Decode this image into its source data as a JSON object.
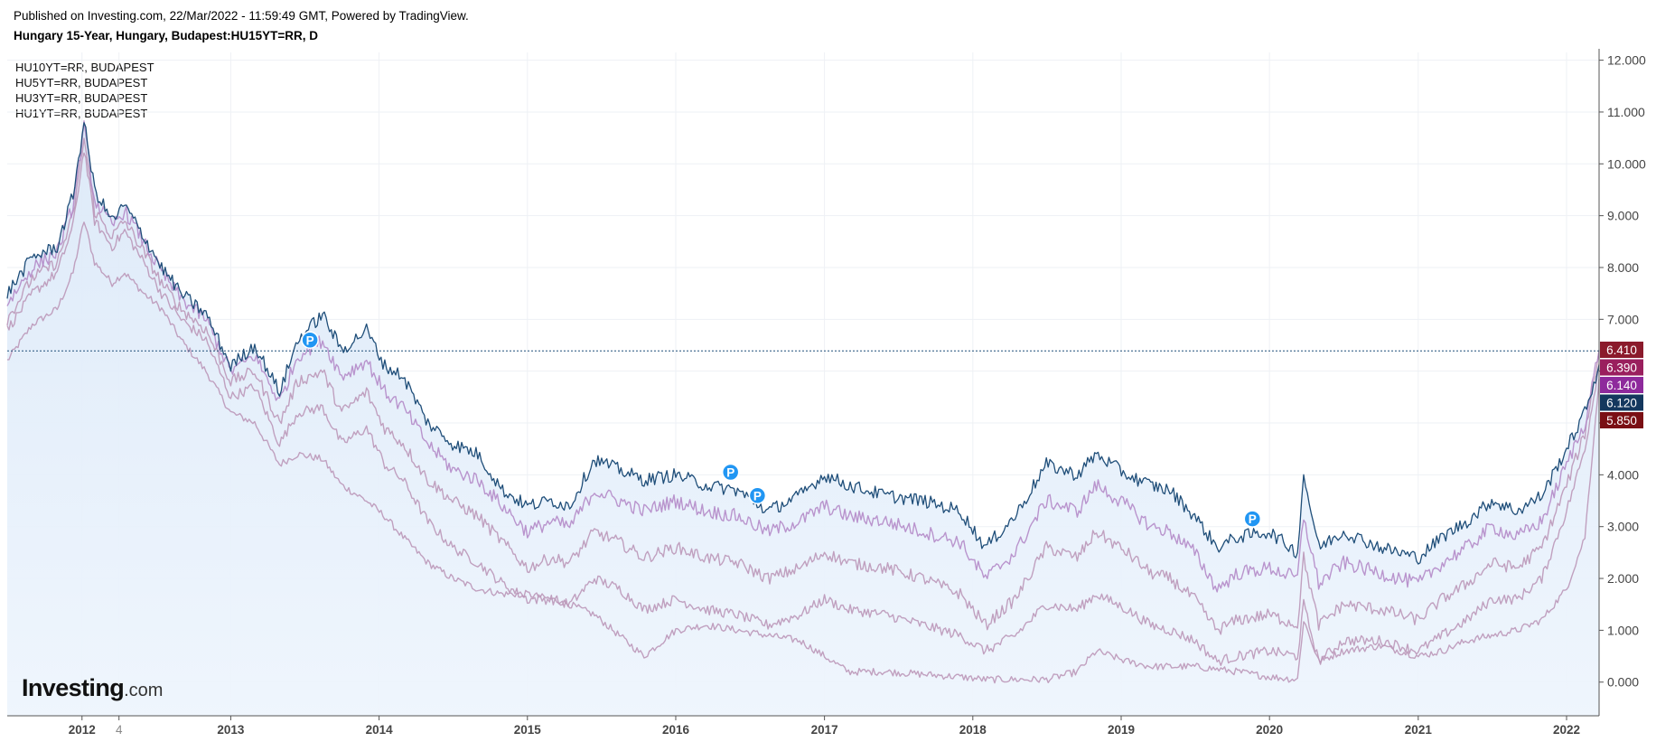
{
  "header": {
    "published": "Published on Investing.com, 22/Mar/2022 - 11:59:49 GMT, Powered by TradingView.",
    "symbol": "Hungary 15-Year, Hungary, Budapest:HU15YT=RR, D"
  },
  "logo": {
    "main": "Investing",
    "suffix": ".com"
  },
  "colors": {
    "main_line": "#1f4e79",
    "compare_line_a": "#b48ac8",
    "compare_line_b": "#bb97b8",
    "area_fill": "#dce9f8",
    "price_line": "#1f4e79",
    "badge_blue": "#2196f3"
  },
  "chart_data": {
    "type": "line",
    "title": "Hungary 15-Year, Hungary, Budapest:HU15YT=RR, D",
    "x_tick_labels": [
      "2012",
      "4",
      "2013",
      "2014",
      "2015",
      "2016",
      "2017",
      "2018",
      "2019",
      "2020",
      "2021",
      "2022"
    ],
    "y_tick_labels": [
      "12.000",
      "11.000",
      "10.000",
      "9.000",
      "8.000",
      "7.000",
      "6.000",
      "5.000",
      "4.000",
      "3.000",
      "2.000",
      "1.000",
      "0.000"
    ],
    "ylim": [
      -0.65,
      12.15
    ],
    "xlim": [
      "2011-07-01",
      "2022-03-22"
    ],
    "grid": true,
    "legend_position": "top-left",
    "legend": [
      "HU10YT=RR, BUDAPEST",
      "HU5YT=RR, BUDAPEST",
      "HU3YT=RR, BUDAPEST",
      "HU1YT=RR, BUDAPEST"
    ],
    "price_line": 6.39,
    "last_value_badges": [
      {
        "value": "6.410",
        "color": "#8b1a2b"
      },
      {
        "value": "6.390",
        "color": "#9a1f5e"
      },
      {
        "value": "6.140",
        "color": "#8e2a9c"
      },
      {
        "value": "6.120",
        "color": "#14385e"
      },
      {
        "value": "5.850",
        "color": "#7a0f14"
      }
    ],
    "markers": [
      {
        "label": "P",
        "date": "2013-07-15",
        "value": 6.6
      },
      {
        "label": "P",
        "date": "2016-05-15",
        "value": 4.05
      },
      {
        "label": "P",
        "date": "2016-07-20",
        "value": 3.6
      },
      {
        "label": "P",
        "date": "2019-11-20",
        "value": 3.15
      }
    ],
    "series": [
      {
        "name": "Hungary 15-Year",
        "color": "#1f4e79",
        "x": [
          "2011-07-01",
          "2011-09-01",
          "2011-11-01",
          "2011-12-10",
          "2012-01-06",
          "2012-02-01",
          "2012-03-15",
          "2012-04-15",
          "2012-06-01",
          "2012-07-15",
          "2012-09-01",
          "2012-11-01",
          "2013-01-01",
          "2013-03-01",
          "2013-05-01",
          "2013-06-15",
          "2013-08-15",
          "2013-10-01",
          "2013-12-01",
          "2014-01-15",
          "2014-03-01",
          "2014-05-01",
          "2014-07-01",
          "2014-09-01",
          "2014-11-01",
          "2015-01-01",
          "2015-03-01",
          "2015-04-15",
          "2015-06-15",
          "2015-08-15",
          "2015-10-15",
          "2016-01-01",
          "2016-03-15",
          "2016-06-01",
          "2016-08-15",
          "2016-11-01",
          "2017-01-01",
          "2017-03-01",
          "2017-06-01",
          "2017-09-01",
          "2017-12-01",
          "2018-02-01",
          "2018-04-15",
          "2018-07-01",
          "2018-09-15",
          "2018-11-01",
          "2019-01-15",
          "2019-03-15",
          "2019-05-01",
          "2019-07-01",
          "2019-08-25",
          "2019-10-15",
          "2020-01-01",
          "2020-03-10",
          "2020-03-25",
          "2020-05-01",
          "2020-07-01",
          "2020-10-01",
          "2021-01-01",
          "2021-03-01",
          "2021-05-01",
          "2021-07-01",
          "2021-09-01",
          "2021-11-01",
          "2022-01-01",
          "2022-02-15",
          "2022-03-22"
        ],
        "y": [
          7.5,
          8.2,
          8.4,
          9.4,
          10.8,
          9.5,
          8.9,
          9.2,
          8.6,
          8.0,
          7.5,
          7.1,
          6.1,
          6.5,
          5.6,
          6.6,
          7.1,
          6.4,
          6.8,
          6.1,
          5.9,
          5.0,
          4.6,
          4.4,
          3.7,
          3.4,
          3.5,
          3.4,
          4.3,
          4.1,
          3.9,
          4.0,
          3.8,
          3.7,
          3.3,
          3.6,
          4.0,
          3.8,
          3.6,
          3.5,
          3.3,
          2.6,
          3.2,
          4.2,
          4.0,
          4.4,
          4.0,
          3.8,
          3.7,
          3.2,
          2.6,
          2.8,
          2.9,
          2.5,
          4.0,
          2.6,
          2.9,
          2.6,
          2.4,
          2.8,
          3.1,
          3.5,
          3.3,
          3.6,
          4.5,
          5.2,
          6.12
        ]
      },
      {
        "name": "HU10YT=RR",
        "color": "#b48ac8",
        "x": [
          "2011-07-01",
          "2011-09-01",
          "2011-11-01",
          "2011-12-10",
          "2012-01-06",
          "2012-02-01",
          "2012-03-15",
          "2012-04-15",
          "2012-06-01",
          "2012-07-15",
          "2012-09-01",
          "2012-11-01",
          "2013-01-01",
          "2013-03-01",
          "2013-05-01",
          "2013-06-15",
          "2013-08-15",
          "2013-10-01",
          "2013-12-01",
          "2014-01-15",
          "2014-03-01",
          "2014-05-01",
          "2014-07-01",
          "2014-09-01",
          "2014-11-01",
          "2015-01-01",
          "2015-03-01",
          "2015-04-15",
          "2015-06-15",
          "2015-08-15",
          "2015-10-15",
          "2016-01-01",
          "2016-03-15",
          "2016-06-01",
          "2016-08-15",
          "2016-11-01",
          "2017-01-01",
          "2017-03-01",
          "2017-06-01",
          "2017-09-01",
          "2017-12-01",
          "2018-02-01",
          "2018-04-15",
          "2018-07-01",
          "2018-09-15",
          "2018-11-01",
          "2019-01-15",
          "2019-03-15",
          "2019-05-01",
          "2019-07-01",
          "2019-08-25",
          "2019-10-15",
          "2020-01-01",
          "2020-03-10",
          "2020-03-25",
          "2020-05-01",
          "2020-07-01",
          "2020-10-01",
          "2021-01-01",
          "2021-03-01",
          "2021-05-01",
          "2021-07-01",
          "2021-09-01",
          "2021-11-01",
          "2022-01-01",
          "2022-02-15",
          "2022-03-22"
        ],
        "y": [
          7.3,
          8.0,
          8.3,
          9.2,
          10.7,
          9.3,
          8.8,
          9.1,
          8.5,
          7.9,
          7.4,
          7.0,
          6.0,
          6.3,
          5.4,
          6.3,
          6.6,
          5.9,
          6.2,
          5.6,
          5.3,
          4.6,
          4.1,
          3.9,
          3.4,
          2.9,
          3.1,
          3.0,
          3.7,
          3.5,
          3.3,
          3.5,
          3.3,
          3.2,
          2.9,
          3.1,
          3.4,
          3.2,
          3.1,
          2.9,
          2.7,
          2.0,
          2.5,
          3.5,
          3.3,
          3.8,
          3.4,
          3.0,
          2.9,
          2.5,
          1.8,
          2.1,
          2.2,
          2.0,
          3.2,
          1.9,
          2.3,
          2.1,
          1.9,
          2.3,
          2.6,
          3.0,
          2.8,
          3.1,
          4.2,
          5.0,
          6.41
        ]
      },
      {
        "name": "HU5YT=RR",
        "color": "#bb97b8",
        "x": [
          "2011-07-01",
          "2011-09-01",
          "2011-11-01",
          "2011-12-10",
          "2012-01-06",
          "2012-02-01",
          "2012-03-15",
          "2012-04-15",
          "2012-06-01",
          "2012-07-15",
          "2012-09-01",
          "2012-11-01",
          "2013-01-01",
          "2013-03-01",
          "2013-05-01",
          "2013-06-15",
          "2013-08-15",
          "2013-10-01",
          "2013-12-01",
          "2014-01-15",
          "2014-03-01",
          "2014-05-01",
          "2014-07-01",
          "2014-09-01",
          "2014-11-01",
          "2015-01-01",
          "2015-03-01",
          "2015-04-15",
          "2015-06-15",
          "2015-08-15",
          "2015-10-15",
          "2016-01-01",
          "2016-03-15",
          "2016-06-01",
          "2016-08-15",
          "2016-11-01",
          "2017-01-01",
          "2017-03-01",
          "2017-06-01",
          "2017-09-01",
          "2017-12-01",
          "2018-02-01",
          "2018-04-15",
          "2018-07-01",
          "2018-09-15",
          "2018-11-01",
          "2019-01-15",
          "2019-03-15",
          "2019-05-01",
          "2019-07-01",
          "2019-08-25",
          "2019-10-15",
          "2020-01-01",
          "2020-03-10",
          "2020-03-25",
          "2020-05-01",
          "2020-07-01",
          "2020-10-01",
          "2021-01-01",
          "2021-03-01",
          "2021-05-01",
          "2021-07-01",
          "2021-09-01",
          "2021-11-01",
          "2022-01-01",
          "2022-02-15",
          "2022-03-22"
        ],
        "y": [
          7.0,
          7.8,
          8.1,
          9.0,
          10.5,
          9.1,
          8.6,
          8.9,
          8.3,
          7.7,
          7.2,
          6.8,
          5.8,
          6.0,
          5.0,
          5.8,
          6.0,
          5.2,
          5.6,
          4.9,
          4.6,
          3.9,
          3.5,
          3.2,
          2.7,
          2.2,
          2.4,
          2.3,
          2.9,
          2.7,
          2.4,
          2.6,
          2.4,
          2.3,
          2.0,
          2.2,
          2.5,
          2.3,
          2.2,
          2.0,
          1.7,
          1.1,
          1.6,
          2.6,
          2.4,
          2.9,
          2.5,
          2.1,
          2.0,
          1.6,
          1.0,
          1.2,
          1.3,
          1.1,
          2.4,
          1.1,
          1.5,
          1.4,
          1.2,
          1.6,
          1.9,
          2.3,
          2.2,
          2.6,
          3.8,
          4.8,
          6.39
        ]
      },
      {
        "name": "HU3YT=RR",
        "color": "#bb97b8",
        "x": [
          "2011-07-01",
          "2011-09-01",
          "2011-11-01",
          "2011-12-10",
          "2012-01-06",
          "2012-02-01",
          "2012-03-15",
          "2012-04-15",
          "2012-06-01",
          "2012-07-15",
          "2012-09-01",
          "2012-11-01",
          "2013-01-01",
          "2013-03-01",
          "2013-05-01",
          "2013-06-15",
          "2013-08-15",
          "2013-10-01",
          "2013-12-01",
          "2014-01-15",
          "2014-03-01",
          "2014-05-01",
          "2014-07-01",
          "2014-09-01",
          "2014-11-01",
          "2015-01-01",
          "2015-03-01",
          "2015-04-15",
          "2015-06-15",
          "2015-08-15",
          "2015-10-15",
          "2016-01-01",
          "2016-03-15",
          "2016-06-01",
          "2016-08-15",
          "2016-11-01",
          "2017-01-01",
          "2017-03-01",
          "2017-06-01",
          "2017-09-01",
          "2017-12-01",
          "2018-02-01",
          "2018-04-15",
          "2018-07-01",
          "2018-09-15",
          "2018-11-01",
          "2019-01-15",
          "2019-03-15",
          "2019-05-01",
          "2019-07-01",
          "2019-08-25",
          "2019-10-15",
          "2020-01-01",
          "2020-03-10",
          "2020-03-25",
          "2020-05-01",
          "2020-07-01",
          "2020-10-01",
          "2021-01-01",
          "2021-03-01",
          "2021-05-01",
          "2021-07-01",
          "2021-09-01",
          "2021-11-01",
          "2022-01-01",
          "2022-02-15",
          "2022-03-22"
        ],
        "y": [
          6.8,
          7.5,
          7.9,
          8.8,
          10.3,
          8.9,
          8.4,
          8.7,
          8.1,
          7.5,
          7.0,
          6.6,
          5.5,
          5.7,
          4.6,
          5.2,
          5.3,
          4.6,
          4.9,
          4.2,
          3.9,
          3.1,
          2.6,
          2.3,
          1.9,
          1.6,
          1.6,
          1.5,
          2.0,
          1.8,
          1.4,
          1.6,
          1.4,
          1.3,
          1.1,
          1.3,
          1.6,
          1.4,
          1.3,
          1.1,
          0.9,
          0.6,
          0.9,
          1.5,
          1.4,
          1.7,
          1.4,
          1.1,
          1.0,
          0.8,
          0.4,
          0.5,
          0.6,
          0.5,
          1.5,
          0.4,
          0.8,
          0.8,
          0.6,
          0.9,
          1.2,
          1.6,
          1.6,
          2.0,
          3.3,
          4.5,
          6.14
        ]
      },
      {
        "name": "HU1YT=RR",
        "color": "#bb97b8",
        "x": [
          "2011-07-01",
          "2011-09-01",
          "2011-11-01",
          "2011-12-10",
          "2012-01-06",
          "2012-02-01",
          "2012-03-15",
          "2012-04-15",
          "2012-06-01",
          "2012-07-15",
          "2012-09-01",
          "2012-11-01",
          "2013-01-01",
          "2013-03-01",
          "2013-05-01",
          "2013-06-15",
          "2013-08-15",
          "2013-10-01",
          "2013-12-01",
          "2014-01-15",
          "2014-03-01",
          "2014-05-01",
          "2014-07-01",
          "2014-09-01",
          "2014-11-01",
          "2015-01-01",
          "2015-03-01",
          "2015-04-15",
          "2015-06-15",
          "2015-08-15",
          "2015-10-15",
          "2016-01-01",
          "2016-03-15",
          "2016-06-01",
          "2016-08-15",
          "2016-11-01",
          "2017-01-01",
          "2017-03-01",
          "2017-06-01",
          "2017-09-01",
          "2017-12-01",
          "2018-02-01",
          "2018-04-15",
          "2018-07-01",
          "2018-09-15",
          "2018-11-01",
          "2019-01-15",
          "2019-03-15",
          "2019-05-01",
          "2019-07-01",
          "2019-08-25",
          "2019-10-15",
          "2020-01-01",
          "2020-03-10",
          "2020-03-25",
          "2020-05-01",
          "2020-07-01",
          "2020-10-01",
          "2021-01-01",
          "2021-03-01",
          "2021-05-01",
          "2021-07-01",
          "2021-09-01",
          "2021-11-01",
          "2022-01-01",
          "2022-02-15",
          "2022-03-22"
        ],
        "y": [
          6.2,
          6.9,
          7.2,
          7.9,
          8.9,
          8.1,
          7.7,
          7.9,
          7.5,
          7.2,
          6.6,
          6.0,
          5.2,
          5.0,
          4.2,
          4.4,
          4.3,
          3.8,
          3.5,
          3.2,
          2.8,
          2.3,
          2.0,
          1.8,
          1.7,
          1.7,
          1.6,
          1.5,
          1.3,
          0.9,
          0.5,
          1.0,
          1.1,
          1.0,
          0.9,
          0.8,
          0.5,
          0.2,
          0.2,
          0.15,
          0.1,
          0.05,
          0.05,
          0.05,
          0.2,
          0.6,
          0.4,
          0.3,
          0.3,
          0.3,
          0.25,
          0.2,
          0.1,
          0.05,
          1.2,
          0.4,
          0.6,
          0.7,
          0.5,
          0.6,
          0.8,
          0.9,
          1.0,
          1.2,
          1.8,
          2.8,
          5.85
        ]
      }
    ]
  }
}
